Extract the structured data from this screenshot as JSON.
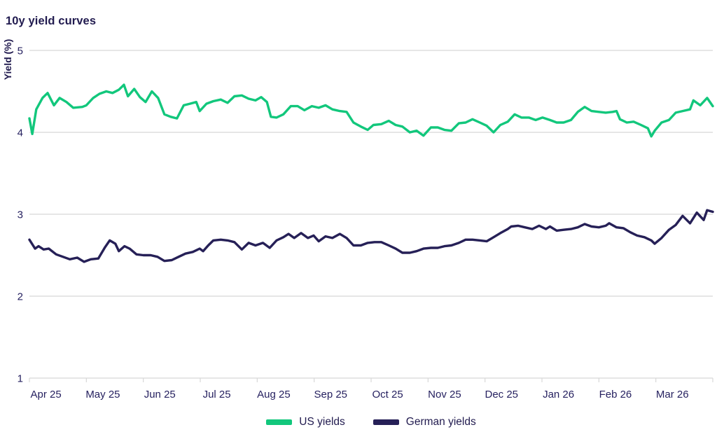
{
  "chart_data": {
    "type": "line",
    "title": "10y yield curves",
    "ylabel": "Yield (%)",
    "xlabel": "",
    "ylim": [
      1,
      5
    ],
    "yticks": [
      5,
      4,
      3,
      2,
      1
    ],
    "xlim": [
      0,
      12
    ],
    "x_unit": "months since Apr 2025",
    "xtick_labels": [
      "Apr 25",
      "May 25",
      "Jun 25",
      "Jul 25",
      "Aug 25",
      "Sep 25",
      "Oct 25",
      "Nov 25",
      "Dec 25",
      "Jan 26",
      "Feb 26",
      "Mar 26"
    ],
    "grid": "horizontal",
    "legend_position": "bottom",
    "colors": {
      "grid": "#D8D8D8",
      "axis_text": "#262160",
      "title_text": "#211B4F"
    },
    "series": [
      {
        "name": "US yields",
        "color": "#12C77C",
        "x": [
          0.0,
          0.05,
          0.12,
          0.23,
          0.32,
          0.43,
          0.53,
          0.65,
          0.77,
          0.93,
          1.0,
          1.12,
          1.23,
          1.35,
          1.46,
          1.57,
          1.66,
          1.73,
          1.84,
          1.94,
          2.04,
          2.15,
          2.26,
          2.37,
          2.48,
          2.59,
          2.71,
          2.82,
          2.93,
          2.99,
          3.11,
          3.23,
          3.36,
          3.48,
          3.6,
          3.73,
          3.85,
          3.97,
          4.07,
          4.17,
          4.24,
          4.34,
          4.46,
          4.59,
          4.71,
          4.83,
          4.96,
          5.08,
          5.2,
          5.32,
          5.45,
          5.57,
          5.69,
          5.82,
          5.94,
          6.04,
          6.18,
          6.31,
          6.43,
          6.55,
          6.68,
          6.8,
          6.92,
          7.05,
          7.17,
          7.29,
          7.41,
          7.54,
          7.66,
          7.78,
          7.91,
          8.03,
          8.15,
          8.27,
          8.4,
          8.52,
          8.64,
          8.77,
          8.89,
          9.01,
          9.14,
          9.26,
          9.38,
          9.51,
          9.63,
          9.75,
          9.87,
          10.0,
          10.12,
          10.24,
          10.31,
          10.37,
          10.49,
          10.61,
          10.74,
          10.86,
          10.92,
          10.98,
          11.1,
          11.23,
          11.35,
          11.47,
          11.6,
          11.66,
          11.78,
          11.9,
          12.0
        ],
        "y": [
          4.17,
          3.98,
          4.28,
          4.42,
          4.48,
          4.33,
          4.42,
          4.37,
          4.3,
          4.31,
          4.33,
          4.42,
          4.47,
          4.5,
          4.48,
          4.52,
          4.58,
          4.44,
          4.53,
          4.43,
          4.37,
          4.5,
          4.42,
          4.22,
          4.19,
          4.17,
          4.33,
          4.35,
          4.37,
          4.26,
          4.35,
          4.38,
          4.4,
          4.36,
          4.44,
          4.45,
          4.41,
          4.39,
          4.43,
          4.37,
          4.19,
          4.18,
          4.22,
          4.32,
          4.32,
          4.27,
          4.32,
          4.3,
          4.33,
          4.28,
          4.26,
          4.25,
          4.12,
          4.07,
          4.03,
          4.09,
          4.1,
          4.14,
          4.09,
          4.07,
          4.0,
          4.02,
          3.96,
          4.06,
          4.06,
          4.03,
          4.02,
          4.11,
          4.12,
          4.16,
          4.12,
          4.08,
          4.0,
          4.09,
          4.13,
          4.22,
          4.18,
          4.18,
          4.15,
          4.18,
          4.15,
          4.12,
          4.12,
          4.15,
          4.25,
          4.31,
          4.26,
          4.25,
          4.24,
          4.25,
          4.26,
          4.16,
          4.12,
          4.13,
          4.09,
          4.05,
          3.95,
          4.02,
          4.12,
          4.15,
          4.24,
          4.26,
          4.28,
          4.39,
          4.33,
          4.42,
          4.32
        ]
      },
      {
        "name": "German yields",
        "color": "#262057",
        "x": [
          0.0,
          0.1,
          0.16,
          0.25,
          0.34,
          0.47,
          0.59,
          0.71,
          0.84,
          0.96,
          1.08,
          1.21,
          1.33,
          1.41,
          1.51,
          1.57,
          1.67,
          1.76,
          1.88,
          2.0,
          2.13,
          2.25,
          2.37,
          2.5,
          2.62,
          2.74,
          2.87,
          2.99,
          3.05,
          3.14,
          3.23,
          3.36,
          3.48,
          3.6,
          3.73,
          3.85,
          3.97,
          4.1,
          4.22,
          4.34,
          4.46,
          4.55,
          4.65,
          4.77,
          4.89,
          4.99,
          5.08,
          5.2,
          5.32,
          5.45,
          5.57,
          5.69,
          5.82,
          5.94,
          6.06,
          6.18,
          6.31,
          6.43,
          6.55,
          6.68,
          6.8,
          6.92,
          7.05,
          7.17,
          7.29,
          7.41,
          7.54,
          7.66,
          7.78,
          7.91,
          8.03,
          8.15,
          8.27,
          8.4,
          8.46,
          8.58,
          8.7,
          8.83,
          8.95,
          9.07,
          9.14,
          9.26,
          9.38,
          9.51,
          9.63,
          9.75,
          9.87,
          10.0,
          10.12,
          10.18,
          10.31,
          10.43,
          10.55,
          10.67,
          10.8,
          10.92,
          10.98,
          11.1,
          11.23,
          11.35,
          11.47,
          11.6,
          11.72,
          11.84,
          11.9,
          12.0
        ],
        "y": [
          2.69,
          2.58,
          2.61,
          2.57,
          2.58,
          2.51,
          2.48,
          2.45,
          2.47,
          2.42,
          2.45,
          2.46,
          2.6,
          2.68,
          2.64,
          2.55,
          2.61,
          2.58,
          2.51,
          2.5,
          2.5,
          2.48,
          2.43,
          2.44,
          2.48,
          2.52,
          2.54,
          2.58,
          2.55,
          2.62,
          2.68,
          2.69,
          2.68,
          2.66,
          2.57,
          2.65,
          2.62,
          2.65,
          2.59,
          2.68,
          2.72,
          2.76,
          2.71,
          2.77,
          2.71,
          2.74,
          2.67,
          2.73,
          2.71,
          2.76,
          2.71,
          2.62,
          2.62,
          2.65,
          2.66,
          2.66,
          2.62,
          2.58,
          2.53,
          2.53,
          2.55,
          2.58,
          2.59,
          2.59,
          2.61,
          2.62,
          2.65,
          2.69,
          2.69,
          2.68,
          2.67,
          2.72,
          2.77,
          2.82,
          2.85,
          2.86,
          2.84,
          2.82,
          2.86,
          2.82,
          2.85,
          2.8,
          2.81,
          2.82,
          2.84,
          2.88,
          2.85,
          2.84,
          2.86,
          2.89,
          2.84,
          2.83,
          2.78,
          2.74,
          2.72,
          2.68,
          2.64,
          2.71,
          2.81,
          2.87,
          2.98,
          2.89,
          3.02,
          2.93,
          3.05,
          3.03
        ]
      }
    ]
  }
}
